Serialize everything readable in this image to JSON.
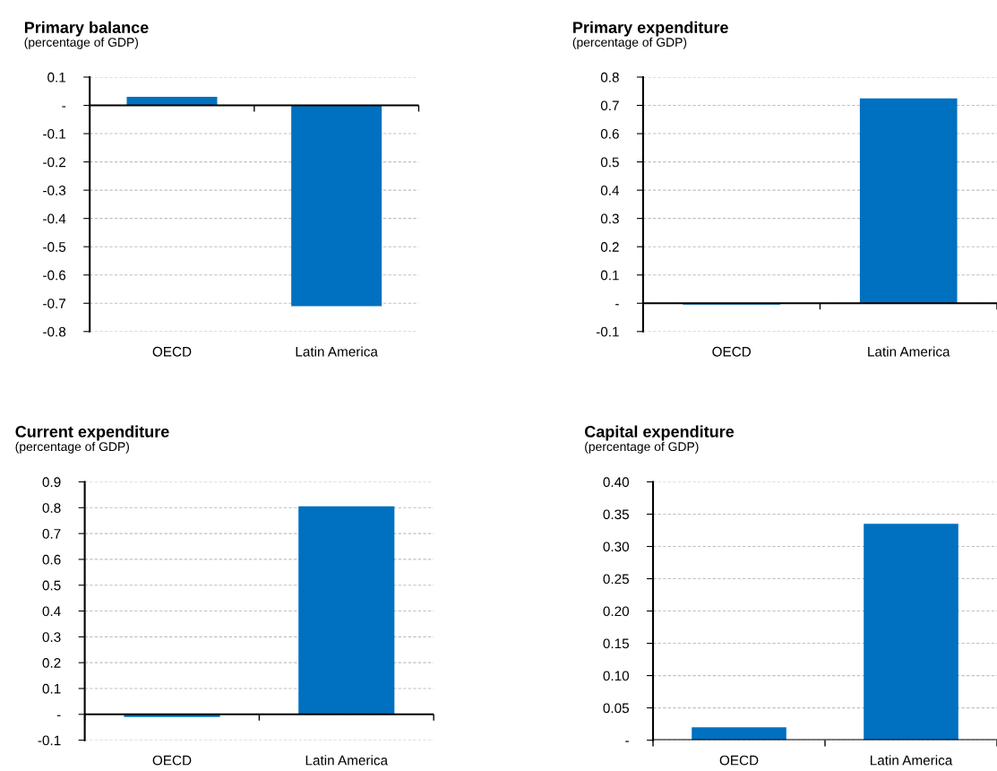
{
  "chart_data": [
    {
      "type": "bar",
      "title": "Primary balance",
      "subtitle": "(percentage of GDP)",
      "categories": [
        "OECD",
        "Latin America"
      ],
      "values": [
        0.03,
        -0.71
      ],
      "color": "#0070c0",
      "ylim": [
        -0.8,
        0.1
      ],
      "yticks": [
        0.1,
        {
          "value": 0,
          "label": "-"
        },
        -0.1,
        -0.2,
        -0.3,
        -0.4,
        -0.5,
        -0.6,
        -0.7,
        -0.8
      ],
      "grid": "y"
    },
    {
      "type": "bar",
      "title": "Primary expenditure",
      "subtitle": "(percentage of GDP)",
      "categories": [
        "OECD",
        "Latin America"
      ],
      "values": [
        -0.005,
        0.725
      ],
      "color": "#0070c0",
      "ylim": [
        -0.1,
        0.8
      ],
      "yticks": [
        -0.1,
        {
          "value": 0,
          "label": "-"
        },
        0.1,
        0.2,
        0.3,
        0.4,
        0.5,
        0.6,
        0.7,
        0.8
      ],
      "grid": "y"
    },
    {
      "type": "bar",
      "title": "Current expenditure",
      "subtitle": "(percentage of GDP)",
      "categories": [
        "OECD",
        "Latin America"
      ],
      "values": [
        -0.01,
        0.805
      ],
      "color": "#0070c0",
      "ylim": [
        -0.1,
        0.9
      ],
      "yticks": [
        -0.1,
        {
          "value": 0,
          "label": "-"
        },
        0.1,
        0.2,
        0.3,
        0.4,
        0.5,
        0.6,
        0.7,
        0.8,
        0.9
      ],
      "grid": "y"
    },
    {
      "type": "bar",
      "title": "Capital expenditure",
      "subtitle": "(percentage of GDP)",
      "categories": [
        "OECD",
        "Latin America"
      ],
      "values": [
        0.02,
        0.335
      ],
      "color": "#0070c0",
      "ylim": [
        0,
        0.4
      ],
      "yticks": [
        {
          "value": 0,
          "label": "-"
        },
        {
          "value": 0.05,
          "label": "0.05"
        },
        {
          "value": 0.1,
          "label": "0.10"
        },
        {
          "value": 0.15,
          "label": "0.15"
        },
        {
          "value": 0.2,
          "label": "0.20"
        },
        {
          "value": 0.25,
          "label": "0.25"
        },
        {
          "value": 0.3,
          "label": "0.30"
        },
        {
          "value": 0.35,
          "label": "0.35"
        },
        {
          "value": 0.4,
          "label": "0.40"
        }
      ],
      "grid": "y"
    }
  ]
}
